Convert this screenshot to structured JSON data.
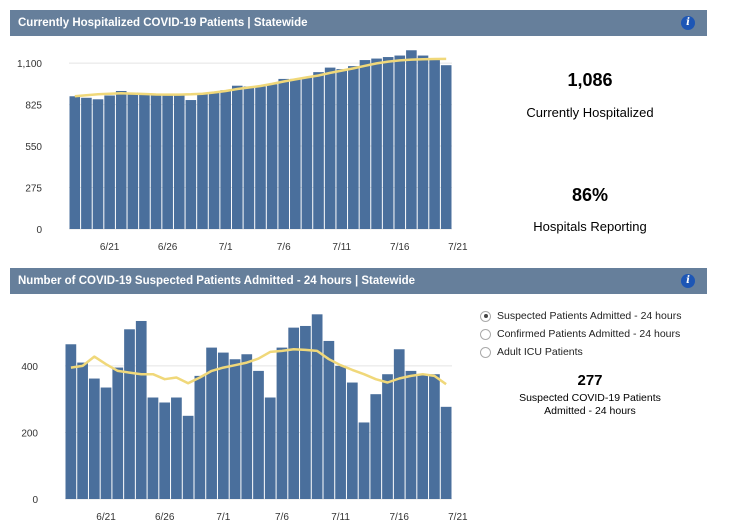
{
  "panel1": {
    "title": "Currently Hospitalized COVID-19 Patients | Statewide",
    "info_icon": "i",
    "stat1_value": "1,086",
    "stat1_label": "Currently Hospitalized",
    "stat2_value": "86%",
    "stat2_label": "Hospitals Reporting"
  },
  "panel2": {
    "title": "Number of COVID-19 Suspected Patients Admitted - 24 hours | Statewide",
    "info_icon": "i",
    "radio_options": [
      {
        "label": "Suspected Patients Admitted - 24 hours",
        "selected": true
      },
      {
        "label": "Confirmed Patients Admitted - 24 hours",
        "selected": false
      },
      {
        "label": "Adult ICU Patients",
        "selected": false
      }
    ],
    "stat_value": "277",
    "stat_label_line1": "Suspected COVID-19 Patients",
    "stat_label_line2": "Admitted - 24 hours"
  },
  "colors": {
    "header": "#667f9b",
    "bar": "#4a6f9c",
    "trend": "#f0d87a",
    "info": "#1d56b5"
  },
  "chart_data": [
    {
      "type": "bar",
      "x": [
        "6/18",
        "6/19",
        "6/20",
        "6/21",
        "6/22",
        "6/23",
        "6/24",
        "6/25",
        "6/26",
        "6/27",
        "6/28",
        "6/29",
        "6/30",
        "7/1",
        "7/2",
        "7/3",
        "7/4",
        "7/5",
        "7/6",
        "7/7",
        "7/8",
        "7/9",
        "7/10",
        "7/11",
        "7/12",
        "7/13",
        "7/14",
        "7/15",
        "7/16",
        "7/17",
        "7/18",
        "7/19",
        "7/20"
      ],
      "xticks": [
        "6/21",
        "6/26",
        "7/1",
        "7/6",
        "7/11",
        "7/16",
        "7/21"
      ],
      "yticks": [
        0,
        275,
        550,
        825,
        1100
      ],
      "ytick_labels": [
        "0",
        "275",
        "550",
        "825",
        "1,100"
      ],
      "ylim": [
        0,
        1200
      ],
      "series": [
        {
          "type": "bar",
          "values": [
            880,
            870,
            860,
            885,
            915,
            905,
            895,
            890,
            890,
            885,
            855,
            900,
            905,
            920,
            950,
            945,
            945,
            960,
            995,
            995,
            1005,
            1040,
            1070,
            1060,
            1080,
            1120,
            1130,
            1140,
            1150,
            1185,
            1150,
            1125,
            1086
          ]
        },
        {
          "type": "line",
          "values": [
            880,
            887,
            893,
            897,
            900,
            898,
            895,
            892,
            891,
            891,
            893,
            897,
            905,
            915,
            928,
            938,
            948,
            962,
            978,
            992,
            1005,
            1018,
            1035,
            1050,
            1065,
            1082,
            1098,
            1110,
            1118,
            1123,
            1125,
            1127,
            1128
          ]
        }
      ]
    },
    {
      "type": "bar",
      "x": [
        "6/18",
        "6/19",
        "6/20",
        "6/21",
        "6/22",
        "6/23",
        "6/24",
        "6/25",
        "6/26",
        "6/27",
        "6/28",
        "6/29",
        "6/30",
        "7/1",
        "7/2",
        "7/3",
        "7/4",
        "7/5",
        "7/6",
        "7/7",
        "7/8",
        "7/9",
        "7/10",
        "7/11",
        "7/12",
        "7/13",
        "7/14",
        "7/15",
        "7/16",
        "7/17",
        "7/18",
        "7/19",
        "7/20"
      ],
      "xticks": [
        "6/21",
        "6/26",
        "7/1",
        "7/6",
        "7/11",
        "7/16",
        "7/21"
      ],
      "yticks": [
        0,
        200,
        400
      ],
      "ytick_labels": [
        "0",
        "200",
        "400"
      ],
      "ylim": [
        0,
        580
      ],
      "series": [
        {
          "type": "bar",
          "values": [
            465,
            410,
            362,
            335,
            395,
            510,
            535,
            305,
            290,
            305,
            250,
            370,
            455,
            440,
            420,
            435,
            385,
            305,
            455,
            515,
            520,
            555,
            475,
            400,
            350,
            230,
            315,
            375,
            450,
            385,
            375,
            375,
            277
          ]
        },
        {
          "type": "line",
          "values": [
            395,
            400,
            428,
            405,
            385,
            380,
            375,
            375,
            360,
            365,
            348,
            365,
            385,
            395,
            402,
            410,
            422,
            442,
            445,
            450,
            448,
            445,
            420,
            402,
            388,
            375,
            360,
            350,
            362,
            370,
            375,
            370,
            345
          ]
        }
      ]
    }
  ]
}
